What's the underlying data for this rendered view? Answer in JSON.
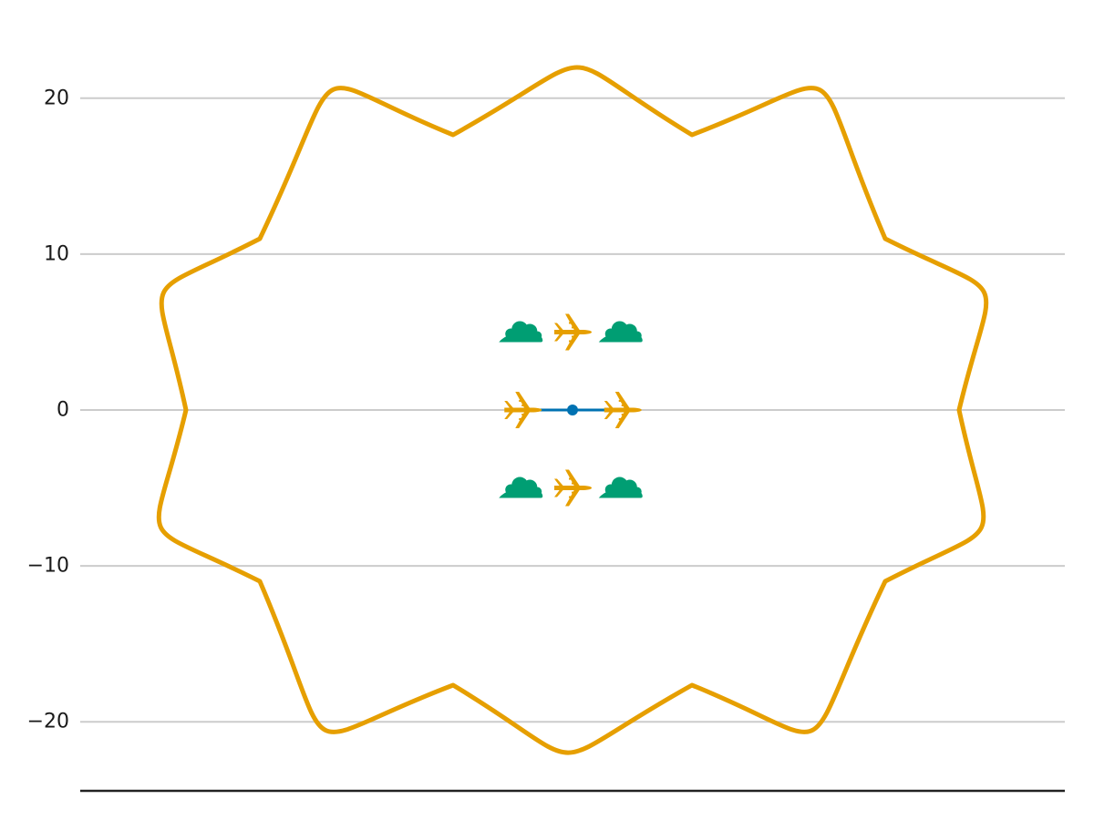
{
  "chart_data": {
    "type": "scatter",
    "title": "",
    "xlabel": "",
    "ylabel": "",
    "ylim": [
      -26.3,
      26.3
    ],
    "xlim": [
      -15.8,
      15.8
    ],
    "grid": {
      "horizontal": true,
      "vertical": false
    },
    "y_ticks": [
      {
        "value": 20,
        "label": "20"
      },
      {
        "value": 10,
        "label": "10"
      },
      {
        "value": 0,
        "label": "0"
      },
      {
        "value": -10,
        "label": "−10"
      },
      {
        "value": -20,
        "label": "−20"
      }
    ],
    "series": [
      {
        "type": "line",
        "color": "#0072b2",
        "x": [
          -3.2,
          3.2
        ],
        "y": [
          0,
          0
        ]
      },
      {
        "type": "point",
        "color": "#0072b2",
        "x": [
          0
        ],
        "y": [
          0
        ]
      },
      {
        "type": "marker",
        "icon": "airplane-icon",
        "color": "#e69f00",
        "points": [
          {
            "x": 0,
            "y": 5
          },
          {
            "x": -3.2,
            "y": 0
          },
          {
            "x": 3.2,
            "y": 0
          },
          {
            "x": 0,
            "y": -5
          }
        ]
      },
      {
        "type": "marker",
        "icon": "cloud-icon",
        "color": "#009e73",
        "points": [
          {
            "x": -3.2,
            "y": 5
          },
          {
            "x": 3.2,
            "y": 5
          },
          {
            "x": -3.2,
            "y": -5
          },
          {
            "x": 3.2,
            "y": -5
          }
        ]
      },
      {
        "type": "outline",
        "icon": "cloud-outline-icon",
        "color": "#e69f00",
        "center": {
          "x": 0,
          "y": 0
        },
        "radius_y": 24
      }
    ]
  }
}
